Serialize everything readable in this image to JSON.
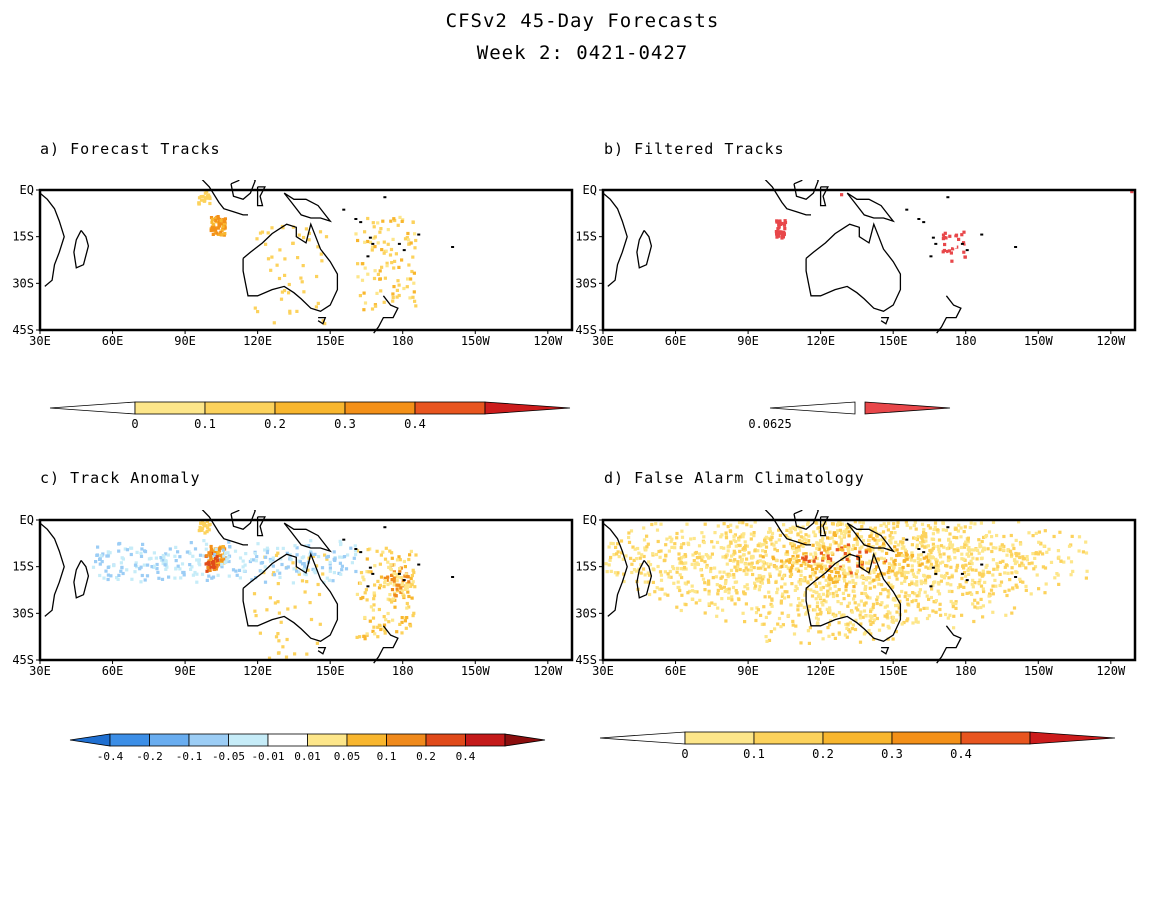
{
  "header": {
    "title": "CFSv2 45-Day Forecasts",
    "subtitle": "Week 2: 0421-0427"
  },
  "axes": {
    "lon_labels": [
      "30E",
      "60E",
      "90E",
      "120E",
      "150E",
      "180",
      "150W",
      "120W"
    ],
    "lat_labels": [
      "EQ",
      "15S",
      "30S",
      "45S"
    ]
  },
  "panels": [
    {
      "id": "a",
      "title": "a) Forecast Tracks",
      "colorbar": {
        "labels": [
          "0",
          "0.1",
          "0.2",
          "0.3",
          "0.4"
        ],
        "colors": [
          "#ffffff",
          "#fde68a",
          "#fcd25c",
          "#f8b62e",
          "#f39018",
          "#e8551f",
          "#cc1c1c"
        ]
      }
    },
    {
      "id": "b",
      "title": "b) Filtered Tracks",
      "colorbar": {
        "labels": [
          "0.0625"
        ],
        "colors": [
          "#ffffff",
          "#e8474a"
        ]
      }
    },
    {
      "id": "c",
      "title": "c) Track Anomaly",
      "colorbar": {
        "labels": [
          "-0.4",
          "-0.2",
          "-0.1",
          "-0.05",
          "-0.01",
          "0.01",
          "0.05",
          "0.1",
          "0.2",
          "0.4"
        ],
        "colors": [
          "#1f6fd1",
          "#3c8ee6",
          "#69adf0",
          "#9ccdf5",
          "#c6ecf8",
          "#ffffff",
          "#fde68a",
          "#f8b62e",
          "#f08a1c",
          "#e04a1a",
          "#c41a1a",
          "#8b0e0e"
        ]
      }
    },
    {
      "id": "d",
      "title": "d) False Alarm Climatology",
      "colorbar": {
        "labels": [
          "0",
          "0.1",
          "0.2",
          "0.3",
          "0.4"
        ],
        "colors": [
          "#ffffff",
          "#fde68a",
          "#fcd25c",
          "#f8b62e",
          "#f39018",
          "#e8551f",
          "#cc1c1c"
        ]
      }
    }
  ]
}
